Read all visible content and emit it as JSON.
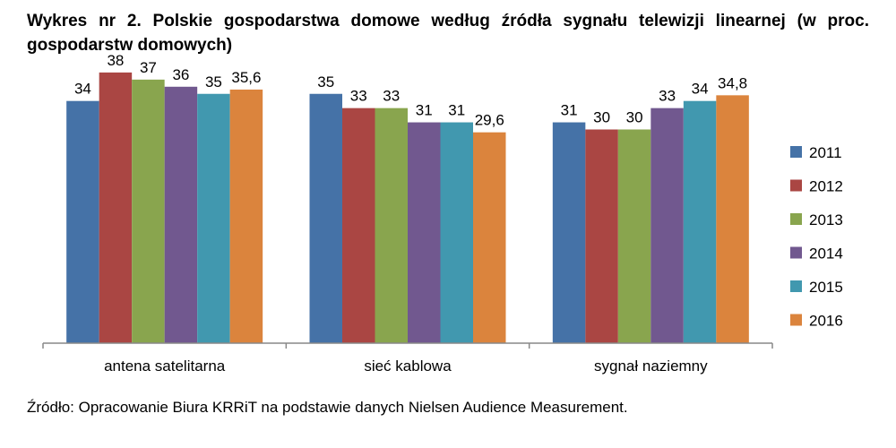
{
  "title": "Wykres nr 2. Polskie gospodarstwa domowe według źródła sygnału telewizji linearnej (w proc. gospodarstw domowych)",
  "source": "Źródło: Opracowanie Biura KRRiT na podstawie danych Nielsen Audience Measurement.",
  "chart_data": {
    "type": "bar",
    "categories": [
      "antena satelitarna",
      "sieć kablowa",
      "sygnał naziemny"
    ],
    "series": [
      {
        "name": "2011",
        "color": "#4572A7",
        "values": [
          34,
          35,
          31
        ],
        "labels": [
          "34",
          "35",
          "31"
        ]
      },
      {
        "name": "2012",
        "color": "#AA4643",
        "values": [
          38,
          33,
          30
        ],
        "labels": [
          "38",
          "33",
          "30"
        ]
      },
      {
        "name": "2013",
        "color": "#89A54E",
        "values": [
          37,
          33,
          30
        ],
        "labels": [
          "37",
          "33",
          "30"
        ]
      },
      {
        "name": "2014",
        "color": "#71588F",
        "values": [
          36,
          31,
          33
        ],
        "labels": [
          "36",
          "31",
          "33"
        ]
      },
      {
        "name": "2015",
        "color": "#4198AF",
        "values": [
          35,
          31,
          34
        ],
        "labels": [
          "35",
          "31",
          "34"
        ]
      },
      {
        "name": "2016",
        "color": "#DB843D",
        "values": [
          35.6,
          29.6,
          34.8
        ],
        "labels": [
          "35,6",
          "29,6",
          "34,8"
        ]
      }
    ],
    "ylim": [
      0,
      43
    ],
    "legend_position": "right",
    "grid": false
  }
}
